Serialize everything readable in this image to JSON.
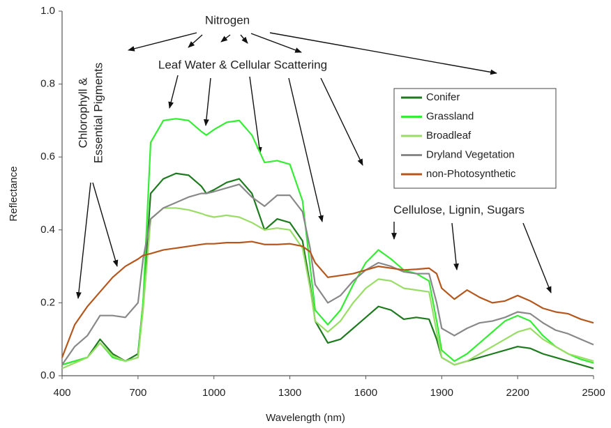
{
  "chart_data": {
    "type": "line",
    "x_label": "Wavelength (nm)",
    "y_label": "Reflectance",
    "annotations": [
      "Nitrogen",
      "Leaf Water & Cellular Scattering",
      "Chlorophyll &",
      "Essential Pigments",
      "Cellulose, Lignin, Sugars"
    ],
    "x": [
      400,
      450,
      500,
      550,
      600,
      650,
      700,
      720,
      750,
      800,
      850,
      900,
      950,
      970,
      1000,
      1050,
      1100,
      1150,
      1200,
      1250,
      1300,
      1350,
      1380,
      1400,
      1450,
      1500,
      1550,
      1600,
      1650,
      1700,
      1750,
      1800,
      1850,
      1880,
      1900,
      1950,
      2000,
      2050,
      2100,
      2150,
      2200,
      2250,
      2300,
      2350,
      2400,
      2450,
      2500
    ],
    "series": [
      {
        "name": "Conifer",
        "color": "#1e7a1e",
        "values": [
          0.03,
          0.04,
          0.05,
          0.1,
          0.06,
          0.04,
          0.06,
          0.2,
          0.5,
          0.54,
          0.555,
          0.55,
          0.52,
          0.5,
          0.51,
          0.53,
          0.54,
          0.5,
          0.4,
          0.43,
          0.42,
          0.37,
          0.25,
          0.15,
          0.09,
          0.1,
          0.13,
          0.16,
          0.19,
          0.18,
          0.155,
          0.16,
          0.155,
          0.1,
          0.05,
          0.03,
          0.04,
          0.05,
          0.06,
          0.07,
          0.08,
          0.075,
          0.06,
          0.05,
          0.04,
          0.03,
          0.02
        ]
      },
      {
        "name": "Grassland",
        "color": "#33ee33",
        "values": [
          0.03,
          0.04,
          0.05,
          0.09,
          0.05,
          0.04,
          0.05,
          0.2,
          0.64,
          0.7,
          0.705,
          0.7,
          0.67,
          0.66,
          0.675,
          0.695,
          0.7,
          0.66,
          0.585,
          0.59,
          0.58,
          0.48,
          0.3,
          0.18,
          0.14,
          0.18,
          0.25,
          0.31,
          0.345,
          0.32,
          0.29,
          0.28,
          0.26,
          0.15,
          0.07,
          0.04,
          0.06,
          0.09,
          0.12,
          0.15,
          0.165,
          0.15,
          0.11,
          0.08,
          0.06,
          0.045,
          0.035
        ]
      },
      {
        "name": "Broadleaf",
        "color": "#99dd66",
        "values": [
          0.02,
          0.035,
          0.05,
          0.09,
          0.055,
          0.04,
          0.05,
          0.18,
          0.43,
          0.46,
          0.46,
          0.455,
          0.445,
          0.44,
          0.435,
          0.44,
          0.435,
          0.42,
          0.4,
          0.405,
          0.4,
          0.35,
          0.24,
          0.15,
          0.12,
          0.15,
          0.2,
          0.24,
          0.265,
          0.26,
          0.24,
          0.235,
          0.23,
          0.12,
          0.05,
          0.03,
          0.04,
          0.06,
          0.08,
          0.1,
          0.12,
          0.13,
          0.1,
          0.08,
          0.06,
          0.05,
          0.04
        ]
      },
      {
        "name": "Dryland Vegetation",
        "color": "#888888",
        "values": [
          0.03,
          0.08,
          0.11,
          0.165,
          0.165,
          0.16,
          0.2,
          0.32,
          0.43,
          0.46,
          0.475,
          0.49,
          0.5,
          0.5,
          0.505,
          0.515,
          0.525,
          0.49,
          0.465,
          0.495,
          0.495,
          0.45,
          0.35,
          0.25,
          0.2,
          0.22,
          0.26,
          0.29,
          0.31,
          0.3,
          0.285,
          0.28,
          0.28,
          0.2,
          0.13,
          0.11,
          0.13,
          0.145,
          0.15,
          0.16,
          0.175,
          0.17,
          0.145,
          0.125,
          0.115,
          0.1,
          0.085
        ]
      },
      {
        "name": "non-Photosynthetic",
        "color": "#b5571d",
        "values": [
          0.05,
          0.14,
          0.19,
          0.23,
          0.27,
          0.3,
          0.32,
          0.33,
          0.335,
          0.345,
          0.35,
          0.355,
          0.36,
          0.362,
          0.362,
          0.365,
          0.365,
          0.368,
          0.36,
          0.36,
          0.362,
          0.355,
          0.34,
          0.31,
          0.27,
          0.275,
          0.28,
          0.29,
          0.3,
          0.295,
          0.29,
          0.292,
          0.295,
          0.28,
          0.24,
          0.21,
          0.235,
          0.215,
          0.2,
          0.205,
          0.22,
          0.205,
          0.185,
          0.175,
          0.17,
          0.155,
          0.145
        ]
      }
    ],
    "xlim": [
      400,
      2500
    ],
    "xticks": [
      400,
      700,
      1000,
      1300,
      1600,
      1900,
      2200,
      2500
    ],
    "ylim": [
      0,
      1
    ],
    "yticks": [
      {
        "value": 0,
        "label": "0.0"
      },
      0.2,
      0.4,
      0.6,
      0.8,
      {
        "value": 1,
        "label": "1.0"
      }
    ],
    "grid": false
  }
}
